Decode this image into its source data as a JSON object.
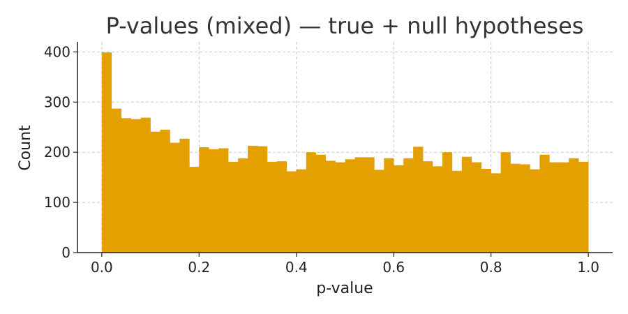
{
  "chart_data": {
    "type": "bar",
    "title": "P-values (mixed) — true + null hypotheses",
    "xlabel": "p-value",
    "ylabel": "Count",
    "xlim": [
      -0.05,
      1.05
    ],
    "ylim": [
      0,
      420
    ],
    "xticks": [
      "0.0",
      "0.2",
      "0.4",
      "0.6",
      "0.8",
      "1.0"
    ],
    "yticks": [
      "0",
      "100",
      "200",
      "300",
      "400"
    ],
    "grid": true,
    "bar_color": "#e3a000",
    "bin_width": 0.02,
    "bin_starts": [
      0.0,
      0.02,
      0.04,
      0.06,
      0.08,
      0.1,
      0.12,
      0.14,
      0.16,
      0.18,
      0.2,
      0.22,
      0.24,
      0.26,
      0.28,
      0.3,
      0.32,
      0.34,
      0.36,
      0.38,
      0.4,
      0.42,
      0.44,
      0.46,
      0.48,
      0.5,
      0.52,
      0.54,
      0.56,
      0.58,
      0.6,
      0.62,
      0.64,
      0.66,
      0.68,
      0.7,
      0.72,
      0.74,
      0.76,
      0.78,
      0.8,
      0.82,
      0.84,
      0.86,
      0.88,
      0.9,
      0.92,
      0.94,
      0.96,
      0.98
    ],
    "values": [
      399,
      287,
      268,
      266,
      269,
      241,
      245,
      219,
      227,
      171,
      210,
      206,
      208,
      181,
      188,
      213,
      212,
      181,
      182,
      162,
      166,
      200,
      195,
      183,
      180,
      186,
      190,
      190,
      165,
      188,
      174,
      188,
      211,
      182,
      172,
      200,
      163,
      191,
      180,
      167,
      158,
      200,
      177,
      176,
      166,
      195,
      180,
      180,
      188,
      181
    ]
  }
}
